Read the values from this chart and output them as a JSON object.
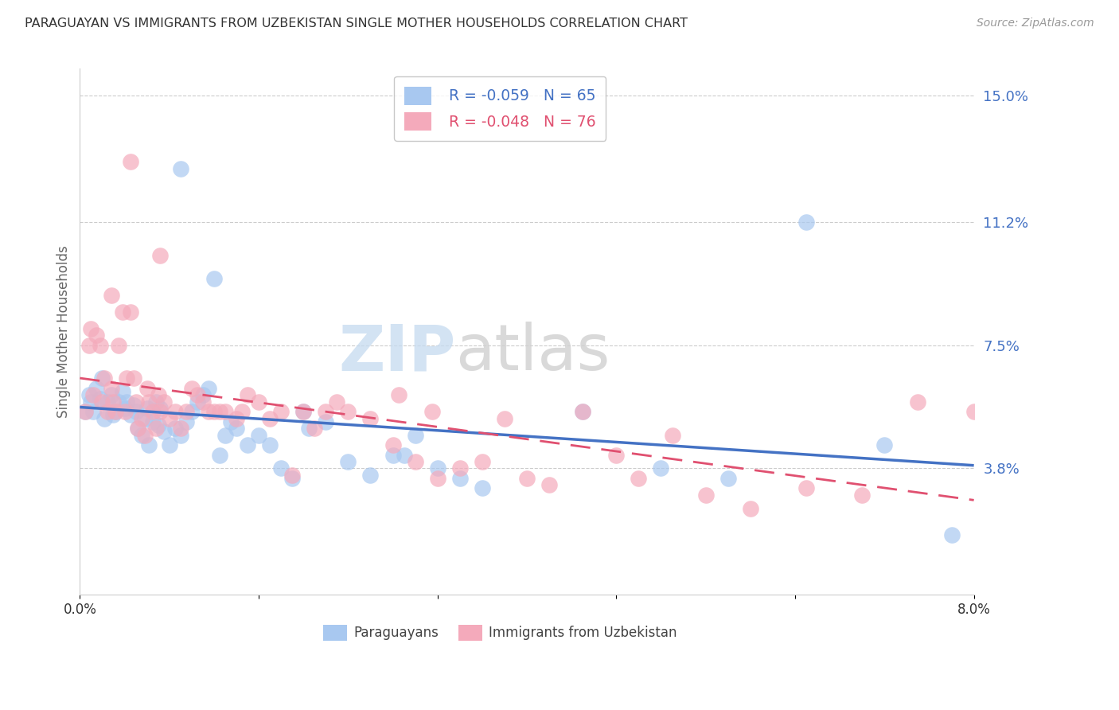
{
  "title": "PARAGUAYAN VS IMMIGRANTS FROM UZBEKISTAN SINGLE MOTHER HOUSEHOLDS CORRELATION CHART",
  "source": "Source: ZipAtlas.com",
  "ylabel": "Single Mother Households",
  "y_ticks_right": [
    3.8,
    7.5,
    11.2,
    15.0
  ],
  "y_tick_labels_right": [
    "3.8%",
    "7.5%",
    "11.2%",
    "15.0%"
  ],
  "series1_label": "Paraguayans",
  "series1_R": -0.059,
  "series1_N": 65,
  "series1_color": "#A8C8F0",
  "series1_line_color": "#4472C4",
  "series2_label": "Immigrants from Uzbekistan",
  "series2_R": -0.048,
  "series2_N": 76,
  "series2_color": "#F4AABB",
  "series2_line_color": "#E05070",
  "watermark_zip": "ZIP",
  "watermark_atlas": "atlas",
  "background_color": "#FFFFFF",
  "grid_color": "#CCCCCC",
  "title_color": "#333333",
  "right_axis_color": "#4472C4",
  "xlim": [
    0.0,
    8.0
  ],
  "ylim": [
    0.0,
    15.8
  ],
  "paraguayan_x": [
    0.05,
    0.08,
    0.1,
    0.12,
    0.15,
    0.18,
    0.2,
    0.22,
    0.25,
    0.28,
    0.3,
    0.32,
    0.35,
    0.38,
    0.4,
    0.42,
    0.45,
    0.48,
    0.5,
    0.52,
    0.55,
    0.58,
    0.6,
    0.62,
    0.65,
    0.68,
    0.7,
    0.72,
    0.75,
    0.8,
    0.85,
    0.9,
    0.95,
    1.0,
    1.05,
    1.1,
    1.15,
    1.2,
    1.25,
    1.3,
    1.4,
    1.5,
    1.6,
    1.7,
    1.8,
    1.9,
    2.0,
    2.2,
    2.4,
    2.6,
    2.8,
    3.0,
    3.2,
    3.4,
    3.6,
    4.5,
    5.2,
    5.8,
    6.5,
    7.2,
    7.8,
    2.05,
    2.9,
    1.35,
    0.9
  ],
  "paraguayan_y": [
    5.5,
    6.0,
    5.8,
    5.5,
    6.2,
    5.9,
    6.5,
    5.3,
    5.8,
    6.0,
    5.4,
    5.5,
    5.8,
    6.1,
    5.6,
    5.8,
    5.4,
    5.7,
    5.5,
    5.0,
    4.8,
    5.3,
    5.6,
    4.5,
    5.2,
    5.8,
    5.1,
    5.6,
    4.9,
    4.5,
    5.0,
    4.8,
    5.2,
    5.5,
    5.8,
    6.0,
    6.2,
    9.5,
    4.2,
    4.8,
    5.0,
    4.5,
    4.8,
    4.5,
    3.8,
    3.5,
    5.5,
    5.2,
    4.0,
    3.6,
    4.2,
    4.8,
    3.8,
    3.5,
    3.2,
    5.5,
    3.8,
    3.5,
    11.2,
    4.5,
    1.8,
    5.0,
    4.2,
    5.2,
    12.8
  ],
  "uzbekistan_x": [
    0.05,
    0.08,
    0.1,
    0.12,
    0.15,
    0.18,
    0.2,
    0.22,
    0.25,
    0.28,
    0.3,
    0.32,
    0.35,
    0.38,
    0.4,
    0.42,
    0.45,
    0.48,
    0.5,
    0.52,
    0.55,
    0.58,
    0.6,
    0.62,
    0.65,
    0.68,
    0.7,
    0.72,
    0.75,
    0.8,
    0.85,
    0.9,
    0.95,
    1.0,
    1.05,
    1.1,
    1.15,
    1.2,
    1.3,
    1.4,
    1.5,
    1.6,
    1.7,
    1.8,
    1.9,
    2.0,
    2.1,
    2.2,
    2.3,
    2.4,
    2.6,
    2.8,
    3.0,
    3.2,
    3.4,
    3.6,
    3.8,
    4.0,
    4.2,
    4.5,
    4.8,
    5.0,
    5.3,
    5.6,
    6.0,
    6.5,
    7.0,
    7.5,
    8.0,
    2.85,
    3.15,
    0.28,
    0.45,
    0.72,
    1.25,
    1.45
  ],
  "uzbekistan_y": [
    5.5,
    7.5,
    8.0,
    6.0,
    7.8,
    7.5,
    5.8,
    6.5,
    5.5,
    6.2,
    5.8,
    5.5,
    7.5,
    8.5,
    5.5,
    6.5,
    8.5,
    6.5,
    5.8,
    5.0,
    5.3,
    4.8,
    6.2,
    5.8,
    5.5,
    5.0,
    6.0,
    5.5,
    5.8,
    5.3,
    5.5,
    5.0,
    5.5,
    6.2,
    6.0,
    5.8,
    5.5,
    5.5,
    5.5,
    5.3,
    6.0,
    5.8,
    5.3,
    5.5,
    3.6,
    5.5,
    5.0,
    5.5,
    5.8,
    5.5,
    5.3,
    4.5,
    4.0,
    3.5,
    3.8,
    4.0,
    5.3,
    3.5,
    3.3,
    5.5,
    4.2,
    3.5,
    4.8,
    3.0,
    2.6,
    3.2,
    3.0,
    5.8,
    5.5,
    6.0,
    5.5,
    9.0,
    13.0,
    10.2,
    5.5,
    5.5
  ]
}
